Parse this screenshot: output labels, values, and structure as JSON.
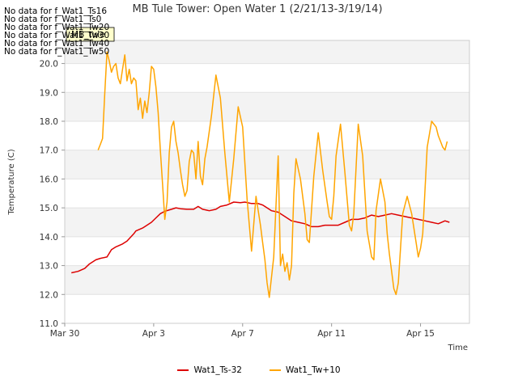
{
  "no_data_messages": [
    "No data for f_Wat1_Ts16",
    "No data for f_Wat1_Ts0",
    "No data for f_Wat1_Tw20",
    "No data for f_Wat1_Tw30",
    "No data for f_Wat1_Tw40",
    "No data for f_Wat1_Tw50"
  ],
  "tooltip": "MB_tule",
  "chart_data": {
    "type": "line",
    "title": "MB Tule Tower: Open Water 1 (2/21/13-3/19/14)",
    "xlabel": "Time",
    "ylabel": "Temperature (C)",
    "xlim": [
      0,
      18.2
    ],
    "ylim": [
      11.0,
      20.8
    ],
    "x_unit": "days since Mar 30",
    "x_ticks": [
      {
        "value": 0,
        "label": "Mar 30"
      },
      {
        "value": 4,
        "label": "Apr 3"
      },
      {
        "value": 8,
        "label": "Apr 7"
      },
      {
        "value": 12,
        "label": "Apr 11"
      },
      {
        "value": 16,
        "label": "Apr 15"
      }
    ],
    "y_ticks": [
      {
        "value": 11.0,
        "label": "11.0"
      },
      {
        "value": 12.0,
        "label": "12.0"
      },
      {
        "value": 13.0,
        "label": "13.0"
      },
      {
        "value": 14.0,
        "label": "14.0"
      },
      {
        "value": 15.0,
        "label": "15.0"
      },
      {
        "value": 16.0,
        "label": "16.0"
      },
      {
        "value": 17.0,
        "label": "17.0"
      },
      {
        "value": 18.0,
        "label": "18.0"
      },
      {
        "value": 19.0,
        "label": "19.0"
      },
      {
        "value": 20.0,
        "label": "20.0"
      }
    ],
    "grid": true,
    "legend_position": "bottom-center",
    "series": [
      {
        "name": "Wat1_Ts-32",
        "color": "#dd0000",
        "x": [
          0.3,
          0.6,
          0.9,
          1.1,
          1.4,
          1.6,
          1.9,
          2.1,
          2.3,
          2.6,
          2.8,
          3.1,
          3.2,
          3.5,
          3.7,
          3.9,
          4.1,
          4.3,
          4.5,
          4.8,
          5.0,
          5.2,
          5.5,
          5.8,
          6.0,
          6.2,
          6.5,
          6.8,
          7.0,
          7.3,
          7.6,
          7.9,
          8.1,
          8.4,
          8.7,
          8.9,
          9.1,
          9.3,
          9.6,
          9.9,
          10.2,
          10.5,
          10.8,
          11.1,
          11.4,
          11.7,
          12.0,
          12.3,
          12.6,
          12.9,
          13.2,
          13.5,
          13.8,
          14.1,
          14.4,
          14.7,
          15.0,
          15.3,
          15.6,
          15.9,
          16.2,
          16.5,
          16.8,
          17.1,
          17.3
        ],
        "values": [
          12.75,
          12.8,
          12.9,
          13.05,
          13.2,
          13.25,
          13.3,
          13.55,
          13.65,
          13.75,
          13.85,
          14.1,
          14.2,
          14.3,
          14.4,
          14.5,
          14.65,
          14.8,
          14.88,
          14.95,
          15.0,
          14.97,
          14.95,
          14.95,
          15.05,
          14.95,
          14.9,
          14.95,
          15.05,
          15.1,
          15.2,
          15.18,
          15.2,
          15.15,
          15.15,
          15.1,
          15.0,
          14.9,
          14.85,
          14.7,
          14.55,
          14.5,
          14.45,
          14.35,
          14.35,
          14.4,
          14.4,
          14.4,
          14.5,
          14.6,
          14.6,
          14.65,
          14.75,
          14.7,
          14.75,
          14.8,
          14.75,
          14.7,
          14.65,
          14.6,
          14.55,
          14.5,
          14.45,
          14.55,
          14.5
        ]
      },
      {
        "name": "Wat1_Tw+10",
        "color": "#ffa500",
        "x": [
          1.5,
          1.6,
          1.7,
          1.8,
          1.9,
          2.0,
          2.1,
          2.2,
          2.3,
          2.4,
          2.5,
          2.6,
          2.7,
          2.8,
          2.9,
          3.0,
          3.1,
          3.2,
          3.3,
          3.4,
          3.5,
          3.6,
          3.7,
          3.8,
          3.9,
          4.0,
          4.1,
          4.2,
          4.3,
          4.4,
          4.5,
          4.6,
          4.7,
          4.8,
          4.9,
          5.0,
          5.1,
          5.2,
          5.3,
          5.4,
          5.5,
          5.6,
          5.7,
          5.8,
          5.9,
          6.0,
          6.1,
          6.2,
          6.3,
          6.4,
          6.6,
          6.8,
          7.0,
          7.2,
          7.4,
          7.6,
          7.8,
          8.0,
          8.2,
          8.4,
          8.6,
          8.8,
          8.9,
          9.0,
          9.1,
          9.2,
          9.4,
          9.6,
          9.7,
          9.8,
          9.9,
          10.0,
          10.1,
          10.2,
          10.3,
          10.4,
          10.6,
          10.8,
          10.9,
          11.0,
          11.2,
          11.4,
          11.6,
          11.8,
          11.9,
          12.0,
          12.1,
          12.2,
          12.4,
          12.6,
          12.8,
          12.9,
          13.0,
          13.2,
          13.4,
          13.6,
          13.8,
          13.9,
          14.0,
          14.2,
          14.4,
          14.5,
          14.6,
          14.8,
          14.9,
          15.0,
          15.2,
          15.4,
          15.6,
          15.8,
          15.9,
          16.0,
          16.1,
          16.3,
          16.5,
          16.7,
          16.8,
          16.9,
          17.0,
          17.1,
          17.2
        ],
        "values": [
          17.0,
          17.2,
          17.4,
          19.0,
          20.4,
          20.1,
          19.7,
          19.9,
          20.0,
          19.5,
          19.3,
          19.8,
          20.3,
          19.4,
          19.8,
          19.3,
          19.5,
          19.4,
          18.4,
          18.8,
          18.1,
          18.7,
          18.3,
          19.0,
          19.9,
          19.8,
          19.2,
          18.3,
          17.0,
          15.8,
          14.6,
          15.2,
          16.9,
          17.8,
          18.0,
          17.3,
          16.9,
          16.3,
          15.8,
          15.4,
          15.6,
          16.6,
          17.0,
          16.9,
          16.0,
          17.3,
          16.1,
          15.8,
          16.7,
          17.1,
          18.2,
          19.6,
          18.8,
          16.9,
          15.2,
          16.7,
          18.5,
          17.8,
          15.3,
          13.5,
          15.4,
          14.4,
          13.8,
          13.2,
          12.4,
          11.9,
          13.3,
          16.8,
          13.0,
          13.4,
          12.8,
          13.1,
          12.5,
          13.0,
          15.5,
          16.7,
          16.0,
          14.8,
          13.9,
          13.8,
          16.1,
          17.6,
          16.3,
          15.2,
          14.7,
          14.6,
          15.4,
          16.8,
          17.9,
          16.2,
          14.4,
          14.2,
          14.8,
          17.9,
          16.8,
          14.2,
          13.3,
          13.2,
          14.9,
          16.0,
          15.2,
          14.1,
          13.4,
          12.2,
          12.0,
          12.4,
          14.8,
          15.4,
          14.8,
          13.8,
          13.3,
          13.6,
          14.1,
          17.1,
          18.0,
          17.8,
          17.5,
          17.3,
          17.1,
          17.0,
          17.3
        ]
      }
    ]
  }
}
